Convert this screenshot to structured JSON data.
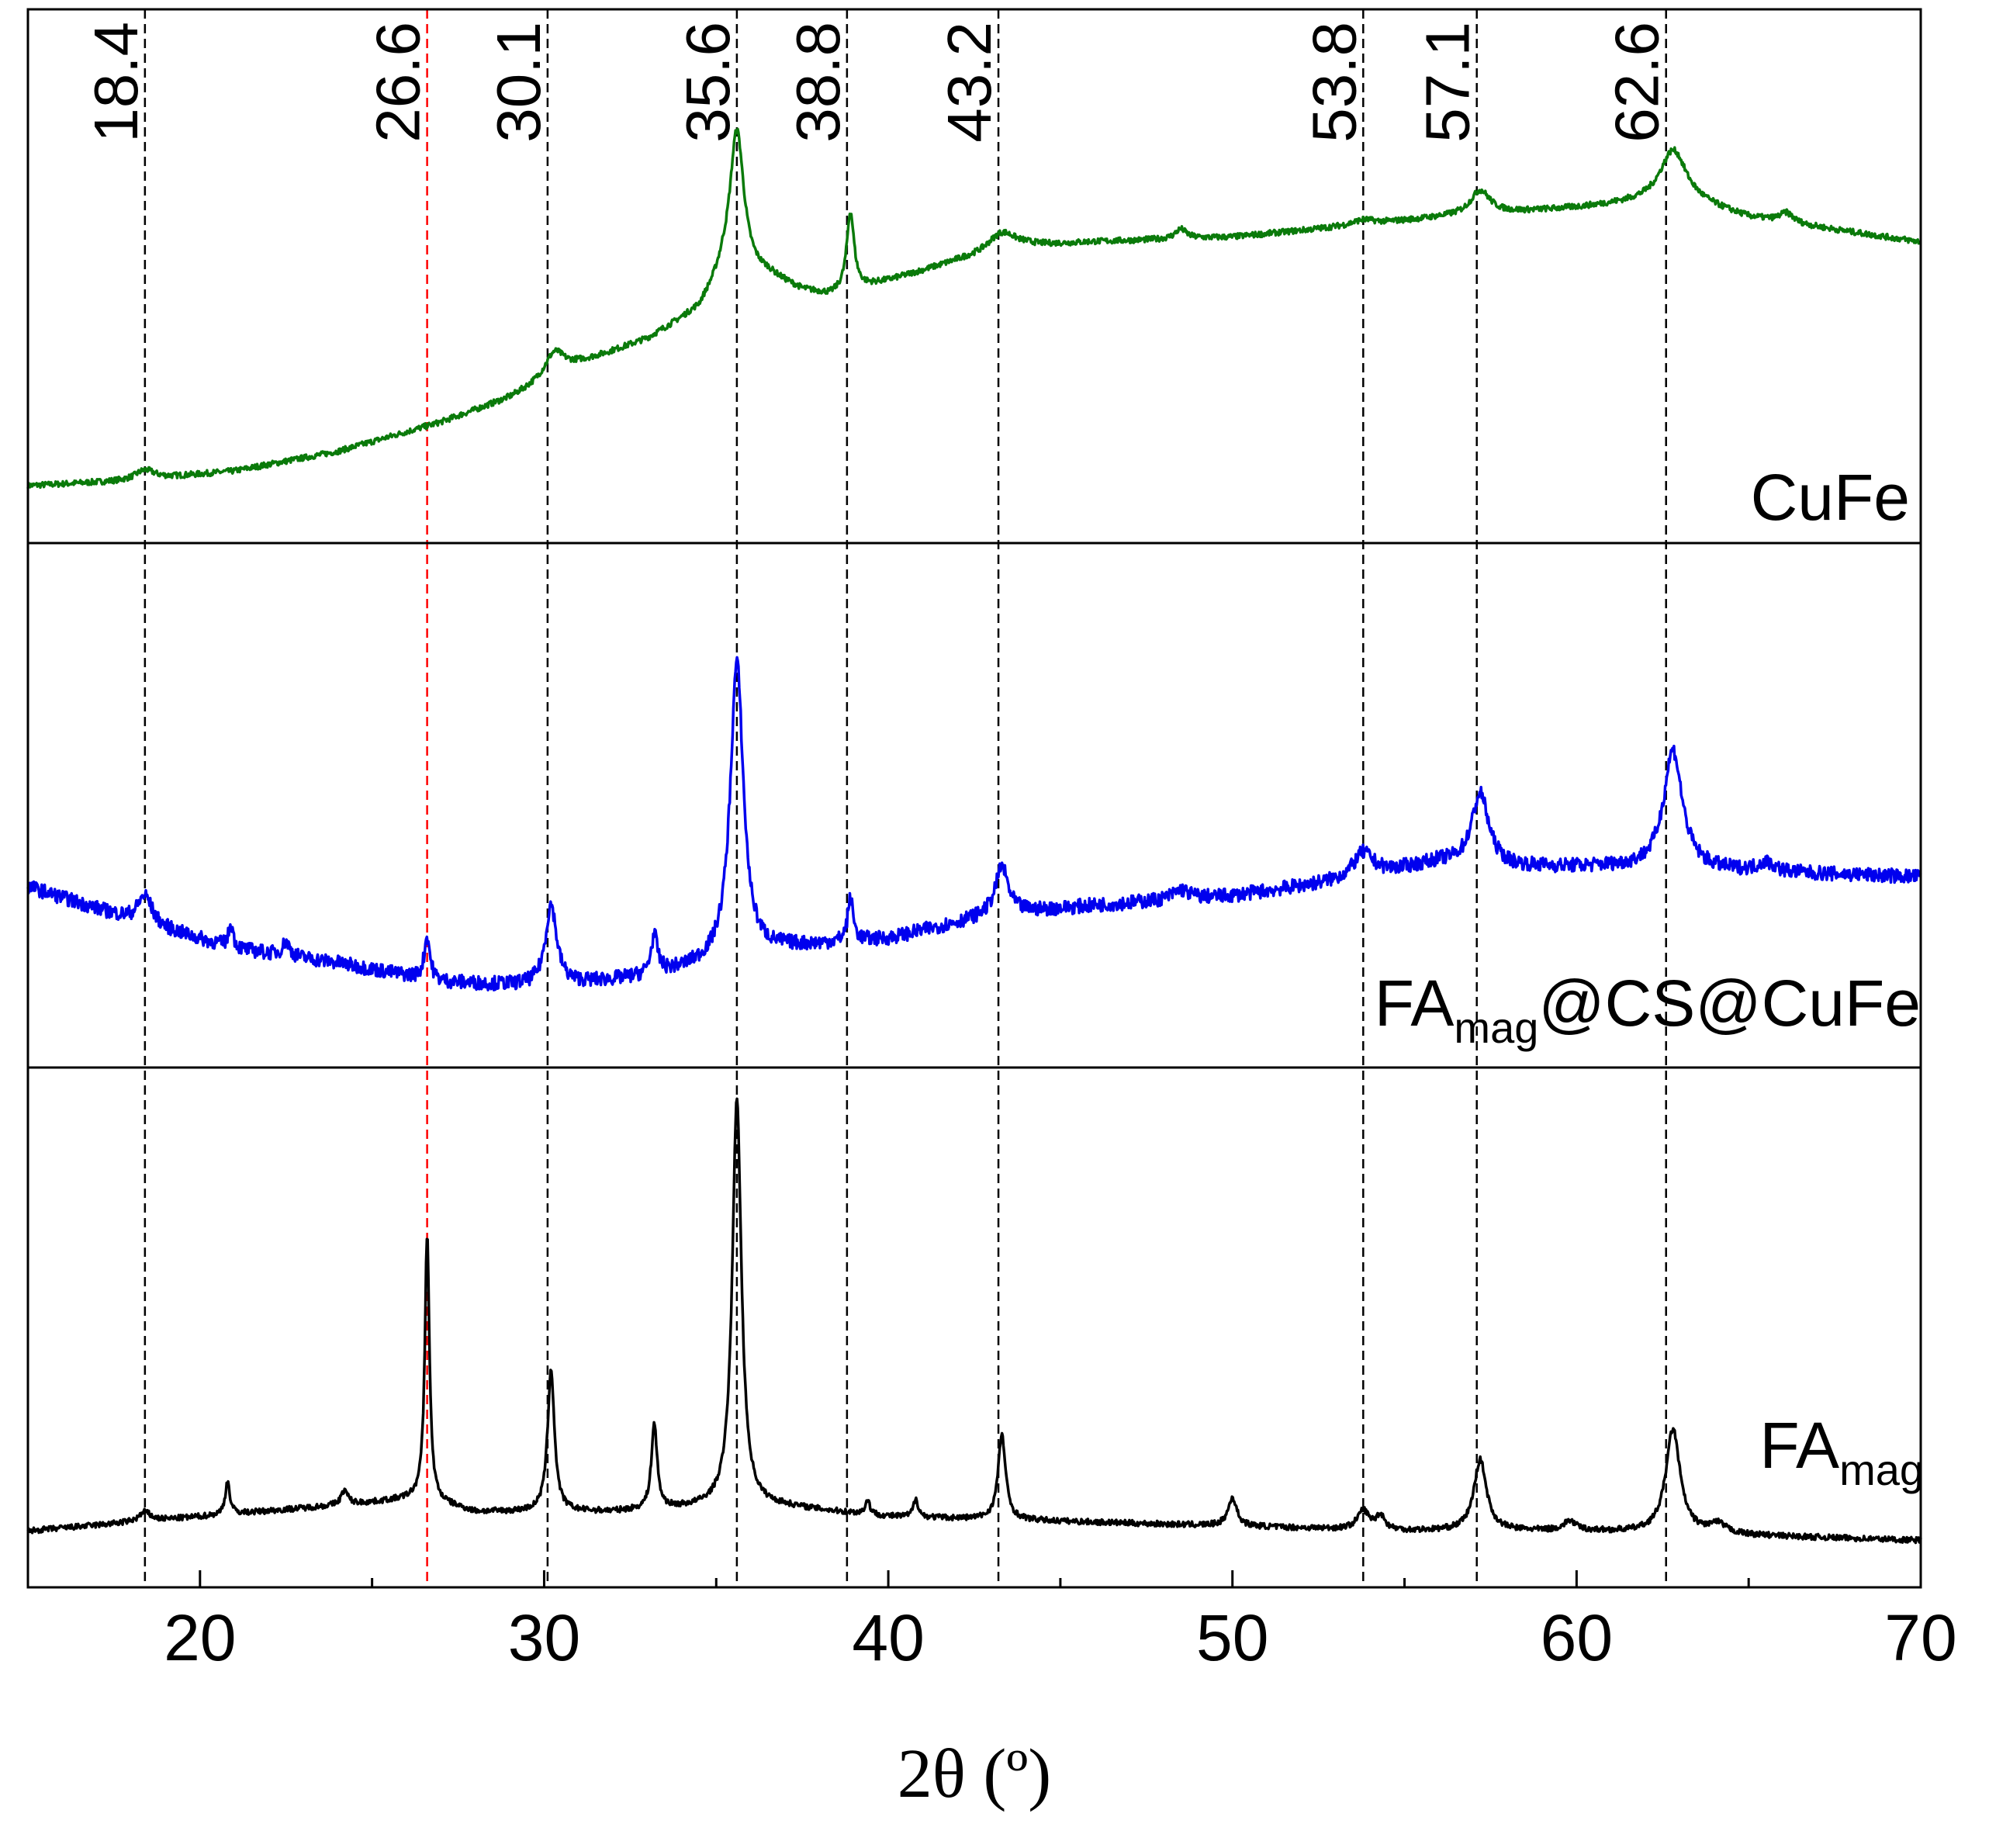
{
  "chart_data": {
    "type": "line",
    "title": "",
    "xlabel": "2θ (º)",
    "ylabel": "",
    "xlim": [
      15,
      70
    ],
    "ylim": [
      0,
      1
    ],
    "grid": false,
    "legend": "none",
    "x_ticks": [
      20,
      30,
      40,
      50,
      60,
      70
    ],
    "x_tick_labels": [
      "20",
      "30",
      "40",
      "50",
      "60",
      "70"
    ],
    "reference_lines": [
      {
        "x": 18.4,
        "label": "18.4",
        "color": "#000000"
      },
      {
        "x": 26.6,
        "label": "26.6",
        "color": "#ff0000"
      },
      {
        "x": 30.1,
        "label": "30.1",
        "color": "#000000"
      },
      {
        "x": 35.6,
        "label": "35.6",
        "color": "#000000"
      },
      {
        "x": 38.8,
        "label": "38.8",
        "color": "#000000"
      },
      {
        "x": 43.2,
        "label": "43.2",
        "color": "#000000"
      },
      {
        "x": 53.8,
        "label": "53.8",
        "color": "#000000"
      },
      {
        "x": 57.1,
        "label": "57.1",
        "color": "#000000"
      },
      {
        "x": 62.6,
        "label": "62.6",
        "color": "#000000"
      }
    ],
    "series": [
      {
        "name": "CuFe",
        "label_main": "CuFe",
        "label_sub": "",
        "color": "#0a7a0a",
        "noise": 0.012,
        "baseline": [
          [
            15,
            0.07
          ],
          [
            18,
            0.08
          ],
          [
            21,
            0.1
          ],
          [
            24,
            0.14
          ],
          [
            27,
            0.2
          ],
          [
            29,
            0.25
          ],
          [
            31,
            0.32
          ],
          [
            33,
            0.37
          ],
          [
            34.5,
            0.43
          ],
          [
            35.2,
            0.5
          ],
          [
            36.5,
            0.5
          ],
          [
            37.5,
            0.47
          ],
          [
            38.3,
            0.46
          ],
          [
            40,
            0.49
          ],
          [
            42,
            0.53
          ],
          [
            44,
            0.56
          ],
          [
            46,
            0.57
          ],
          [
            50,
            0.58
          ],
          [
            53,
            0.6
          ],
          [
            56,
            0.62
          ],
          [
            58,
            0.63
          ],
          [
            60,
            0.64
          ],
          [
            61.5,
            0.65
          ],
          [
            63,
            0.66
          ],
          [
            65,
            0.62
          ],
          [
            67,
            0.6
          ],
          [
            70,
            0.57
          ]
        ],
        "peaks": [
          {
            "x": 18.4,
            "h": 0.02,
            "w": 0.35
          },
          {
            "x": 30.3,
            "h": 0.05,
            "w": 0.35
          },
          {
            "x": 35.6,
            "h": 0.3,
            "w": 0.25
          },
          {
            "x": 38.9,
            "h": 0.16,
            "w": 0.13
          },
          {
            "x": 43.3,
            "h": 0.04,
            "w": 0.5
          },
          {
            "x": 48.5,
            "h": 0.02,
            "w": 0.2
          },
          {
            "x": 53.8,
            "h": 0.01,
            "w": 0.4
          },
          {
            "x": 57.2,
            "h": 0.05,
            "w": 0.35
          },
          {
            "x": 62.8,
            "h": 0.1,
            "w": 0.45
          },
          {
            "x": 66.1,
            "h": 0.02,
            "w": 0.25
          }
        ]
      },
      {
        "name": "FAmag@CS@CuFe",
        "label_main": "FA",
        "label_sub": "mag",
        "label_tail": "@CS@CuFe",
        "color": "#0000ee",
        "noise": 0.03,
        "baseline": [
          [
            15,
            0.33
          ],
          [
            18,
            0.26
          ],
          [
            21,
            0.2
          ],
          [
            24,
            0.17
          ],
          [
            27,
            0.13
          ],
          [
            30,
            0.12
          ],
          [
            33,
            0.14
          ],
          [
            35,
            0.17
          ],
          [
            37,
            0.2
          ],
          [
            40,
            0.22
          ],
          [
            43,
            0.27
          ],
          [
            46,
            0.29
          ],
          [
            50,
            0.31
          ],
          [
            53,
            0.34
          ],
          [
            56,
            0.38
          ],
          [
            58,
            0.37
          ],
          [
            61,
            0.37
          ],
          [
            65,
            0.36
          ],
          [
            70,
            0.35
          ]
        ],
        "peaks": [
          {
            "x": 18.4,
            "h": 0.06,
            "w": 0.25
          },
          {
            "x": 20.9,
            "h": 0.05,
            "w": 0.08
          },
          {
            "x": 22.5,
            "h": 0.03,
            "w": 0.12
          },
          {
            "x": 26.6,
            "h": 0.09,
            "w": 0.1
          },
          {
            "x": 30.2,
            "h": 0.17,
            "w": 0.2
          },
          {
            "x": 33.2,
            "h": 0.08,
            "w": 0.12
          },
          {
            "x": 35.6,
            "h": 0.62,
            "w": 0.23
          },
          {
            "x": 38.9,
            "h": 0.09,
            "w": 0.1
          },
          {
            "x": 43.3,
            "h": 0.1,
            "w": 0.22
          },
          {
            "x": 48.5,
            "h": 0.02,
            "w": 0.3
          },
          {
            "x": 53.8,
            "h": 0.05,
            "w": 0.35
          },
          {
            "x": 57.2,
            "h": 0.15,
            "w": 0.3
          },
          {
            "x": 62.8,
            "h": 0.25,
            "w": 0.33
          },
          {
            "x": 65.5,
            "h": 0.02,
            "w": 0.3
          }
        ]
      },
      {
        "name": "FAmag",
        "label_main": "FA",
        "label_sub": "mag",
        "label_tail": "",
        "color": "#000000",
        "noise": 0.012,
        "baseline": [
          [
            15,
            0.07
          ],
          [
            20,
            0.1
          ],
          [
            25,
            0.13
          ],
          [
            26.4,
            0.14
          ],
          [
            28,
            0.11
          ],
          [
            32,
            0.11
          ],
          [
            35,
            0.12
          ],
          [
            37,
            0.12
          ],
          [
            40,
            0.1
          ],
          [
            45,
            0.09
          ],
          [
            50,
            0.08
          ],
          [
            55,
            0.07
          ],
          [
            60,
            0.07
          ],
          [
            65,
            0.06
          ],
          [
            70,
            0.05
          ]
        ],
        "peaks": [
          {
            "x": 18.4,
            "h": 0.02,
            "w": 0.2
          },
          {
            "x": 20.8,
            "h": 0.07,
            "w": 0.08
          },
          {
            "x": 24.2,
            "h": 0.03,
            "w": 0.12
          },
          {
            "x": 26.6,
            "h": 0.56,
            "w": 0.08
          },
          {
            "x": 30.2,
            "h": 0.3,
            "w": 0.12
          },
          {
            "x": 33.2,
            "h": 0.18,
            "w": 0.1
          },
          {
            "x": 35.6,
            "h": 0.86,
            "w": 0.16
          },
          {
            "x": 39.4,
            "h": 0.03,
            "w": 0.08
          },
          {
            "x": 40.8,
            "h": 0.04,
            "w": 0.08
          },
          {
            "x": 43.3,
            "h": 0.18,
            "w": 0.13
          },
          {
            "x": 50.0,
            "h": 0.06,
            "w": 0.15
          },
          {
            "x": 53.8,
            "h": 0.04,
            "w": 0.2
          },
          {
            "x": 54.3,
            "h": 0.03,
            "w": 0.15
          },
          {
            "x": 57.2,
            "h": 0.15,
            "w": 0.22
          },
          {
            "x": 59.8,
            "h": 0.02,
            "w": 0.2
          },
          {
            "x": 62.8,
            "h": 0.22,
            "w": 0.25
          },
          {
            "x": 64.1,
            "h": 0.02,
            "w": 0.3
          }
        ]
      }
    ]
  }
}
